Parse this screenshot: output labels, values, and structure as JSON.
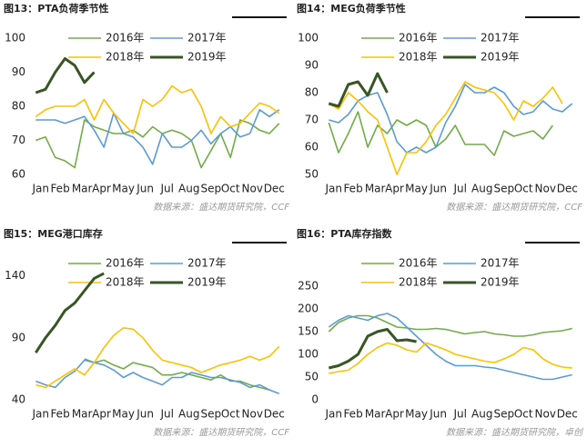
{
  "chart_data": [
    {
      "type": "line",
      "title": "图13：PTA负荷季节性",
      "source": "数据来源：盛达期货研究院，CCF",
      "xlim": [
        0,
        52
      ],
      "xticks": [
        {
          "value": 2,
          "label": "Jan"
        },
        {
          "value": 6,
          "label": "Feb"
        },
        {
          "value": 10.5,
          "label": "Mar"
        },
        {
          "value": 14.5,
          "label": "Apr"
        },
        {
          "value": 19,
          "label": "May"
        },
        {
          "value": 23.5,
          "label": "Jun"
        },
        {
          "value": 28,
          "label": "Jul"
        },
        {
          "value": 32.5,
          "label": "Aug"
        },
        {
          "value": 37,
          "label": "Sep"
        },
        {
          "value": 41,
          "label": "Oct"
        },
        {
          "value": 45.5,
          "label": "Nov"
        },
        {
          "value": 50,
          "label": "Dec"
        }
      ],
      "x": [
        1,
        3,
        5,
        7,
        9,
        11,
        13,
        15,
        17,
        19,
        21,
        23,
        25,
        27,
        29,
        31,
        33,
        35,
        37,
        39,
        41,
        43,
        45,
        47,
        49,
        51
      ],
      "ylim": [
        60,
        100
      ],
      "yticks": [
        60,
        70,
        80,
        90,
        100
      ],
      "series": [
        {
          "name": "2016年",
          "color": "#70ad47",
          "values": [
            70,
            71,
            65,
            64,
            62,
            76,
            74,
            73,
            72,
            72,
            73,
            71,
            74,
            72,
            73,
            72,
            70,
            62,
            67,
            72,
            65,
            76,
            75,
            73,
            72,
            75
          ]
        },
        {
          "name": "2017年",
          "color": "#5b9bd5",
          "values": [
            76,
            76,
            76,
            75,
            76,
            77,
            73,
            68,
            78,
            72,
            71,
            68,
            63,
            72,
            68,
            68,
            70,
            73,
            69,
            72,
            74,
            71,
            72,
            79,
            77,
            79
          ]
        },
        {
          "name": "2018年",
          "color": "#ffc000",
          "values": [
            77,
            79,
            80,
            80,
            80,
            82,
            76,
            82,
            78,
            75,
            72,
            82,
            80,
            82,
            86,
            84,
            85,
            80,
            72,
            77,
            74,
            75,
            78,
            81,
            80,
            78
          ]
        },
        {
          "name": "2019年",
          "color": "#375623",
          "values": [
            84,
            85,
            90,
            94,
            92,
            87,
            90,
            null,
            null,
            null,
            null,
            null,
            null,
            null,
            null,
            null,
            null,
            null,
            null,
            null,
            null,
            null,
            null,
            null,
            null,
            null
          ]
        }
      ]
    },
    {
      "type": "line",
      "title": "图14：MEG负荷季节性",
      "source": "数据来源：盛达期货研究院，CCF",
      "xlim": [
        0,
        52
      ],
      "xticks": [
        {
          "value": 2,
          "label": "Jan"
        },
        {
          "value": 6,
          "label": "Feb"
        },
        {
          "value": 10.5,
          "label": "Mar"
        },
        {
          "value": 14.5,
          "label": "Apr"
        },
        {
          "value": 19,
          "label": "May"
        },
        {
          "value": 23.5,
          "label": "Jun"
        },
        {
          "value": 28,
          "label": "Jul"
        },
        {
          "value": 32.5,
          "label": "Aug"
        },
        {
          "value": 37,
          "label": "Sep"
        },
        {
          "value": 41,
          "label": "Oct"
        },
        {
          "value": 45.5,
          "label": "Nov"
        },
        {
          "value": 50,
          "label": "Dec"
        }
      ],
      "x": [
        1,
        3,
        5,
        7,
        9,
        11,
        13,
        15,
        17,
        19,
        21,
        23,
        25,
        27,
        29,
        31,
        33,
        35,
        37,
        39,
        41,
        43,
        45,
        47,
        49,
        51
      ],
      "ylim": [
        50,
        100
      ],
      "yticks": [
        50,
        60,
        70,
        80,
        90,
        100
      ],
      "series": [
        {
          "name": "2016年",
          "color": "#70ad47",
          "values": [
            69,
            58,
            65,
            73,
            60,
            68,
            65,
            70,
            68,
            70,
            68,
            60,
            63,
            68,
            61,
            61,
            61,
            57,
            66,
            64,
            65,
            66,
            63,
            68,
            null,
            null
          ]
        },
        {
          "name": "2017年",
          "color": "#5b9bd5",
          "values": [
            70,
            69,
            72,
            77,
            79,
            80,
            72,
            62,
            58,
            60,
            58,
            60,
            69,
            75,
            83,
            80,
            80,
            82,
            80,
            75,
            72,
            73,
            77,
            74,
            73,
            76
          ]
        },
        {
          "name": "2018年",
          "color": "#ffc000",
          "values": [
            76,
            74,
            80,
            77,
            73,
            70,
            60,
            50,
            58,
            58,
            62,
            68,
            72,
            78,
            84,
            82,
            81,
            80,
            76,
            70,
            77,
            75,
            78,
            82,
            76,
            null
          ]
        },
        {
          "name": "2019年",
          "color": "#375623",
          "values": [
            76,
            75,
            83,
            84,
            79,
            87,
            80,
            null,
            null,
            null,
            null,
            null,
            null,
            null,
            null,
            null,
            null,
            null,
            null,
            null,
            null,
            null,
            null,
            null,
            null,
            null
          ]
        }
      ]
    },
    {
      "type": "line",
      "title": "图15：MEG港口库存",
      "source": "数据来源：盛达期货研究院，CCF",
      "xlim": [
        0,
        52
      ],
      "xticks": [
        {
          "value": 2,
          "label": "Jan"
        },
        {
          "value": 6,
          "label": "Feb"
        },
        {
          "value": 10.5,
          "label": "Mar"
        },
        {
          "value": 14.5,
          "label": "Apr"
        },
        {
          "value": 19,
          "label": "May"
        },
        {
          "value": 23.5,
          "label": "Jun"
        },
        {
          "value": 28,
          "label": "Jul"
        },
        {
          "value": 32.5,
          "label": "Aug"
        },
        {
          "value": 37,
          "label": "Sep"
        },
        {
          "value": 41,
          "label": "Oct"
        },
        {
          "value": 45.5,
          "label": "Nov"
        },
        {
          "value": 50,
          "label": "Dec"
        }
      ],
      "x": [
        1,
        3,
        5,
        7,
        9,
        11,
        13,
        15,
        17,
        19,
        21,
        23,
        25,
        27,
        29,
        31,
        33,
        35,
        37,
        39,
        41,
        43,
        45,
        47,
        49,
        51
      ],
      "ylim": [
        40,
        150
      ],
      "yticks": [
        40,
        90,
        140
      ],
      "series": [
        {
          "name": "2016年",
          "color": "#70ad47",
          "values": [
            null,
            null,
            null,
            null,
            null,
            73,
            70,
            72,
            68,
            65,
            70,
            68,
            66,
            60,
            60,
            62,
            60,
            58,
            56,
            60,
            55,
            55,
            52,
            50,
            48,
            null
          ]
        },
        {
          "name": "2017年",
          "color": "#5b9bd5",
          "values": [
            55,
            52,
            50,
            58,
            63,
            72,
            70,
            68,
            64,
            58,
            62,
            58,
            55,
            52,
            58,
            58,
            62,
            60,
            58,
            58,
            56,
            54,
            50,
            52,
            48,
            45
          ]
        },
        {
          "name": "2018年",
          "color": "#ffc000",
          "values": [
            52,
            50,
            55,
            60,
            65,
            60,
            70,
            82,
            92,
            98,
            97,
            90,
            80,
            72,
            70,
            68,
            66,
            62,
            65,
            68,
            70,
            72,
            75,
            72,
            75,
            83
          ]
        },
        {
          "name": "2019年",
          "color": "#375623",
          "values": [
            78,
            90,
            100,
            112,
            118,
            128,
            138,
            142,
            null,
            null,
            null,
            null,
            null,
            null,
            null,
            null,
            null,
            null,
            null,
            null,
            null,
            null,
            null,
            null,
            null,
            null
          ]
        }
      ]
    },
    {
      "type": "line",
      "title": "图16：PTA库存指数",
      "source": "数据来源：盛达期货研究院，卓创",
      "xlim": [
        0,
        52
      ],
      "xticks": [
        {
          "value": 2,
          "label": "Jan"
        },
        {
          "value": 6,
          "label": "Feb"
        },
        {
          "value": 10.5,
          "label": "Mar"
        },
        {
          "value": 14.5,
          "label": "Apr"
        },
        {
          "value": 19,
          "label": "May"
        },
        {
          "value": 23.5,
          "label": "Jun"
        },
        {
          "value": 28,
          "label": "Jul"
        },
        {
          "value": 32.5,
          "label": "Aug"
        },
        {
          "value": 37,
          "label": "Sep"
        },
        {
          "value": 41,
          "label": "Oct"
        },
        {
          "value": 45.5,
          "label": "Nov"
        },
        {
          "value": 50,
          "label": "Dec"
        }
      ],
      "x": [
        1,
        3,
        5,
        7,
        9,
        11,
        13,
        15,
        17,
        19,
        21,
        23,
        25,
        27,
        29,
        31,
        33,
        35,
        37,
        39,
        41,
        43,
        45,
        47,
        49,
        51
      ],
      "ylim": [
        0,
        300
      ],
      "yticks": [
        0,
        50,
        100,
        150,
        200,
        250
      ],
      "series": [
        {
          "name": "2016年",
          "color": "#70ad47",
          "values": [
            150,
            170,
            180,
            185,
            185,
            180,
            170,
            160,
            158,
            155,
            155,
            157,
            155,
            150,
            145,
            148,
            150,
            145,
            143,
            140,
            140,
            143,
            148,
            150,
            152,
            157
          ]
        },
        {
          "name": "2017年",
          "color": "#5b9bd5",
          "values": [
            160,
            175,
            185,
            180,
            175,
            185,
            190,
            180,
            160,
            140,
            120,
            100,
            85,
            75,
            75,
            75,
            72,
            70,
            65,
            60,
            55,
            50,
            45,
            45,
            50,
            55
          ]
        },
        {
          "name": "2018年",
          "color": "#ffc000",
          "values": [
            58,
            62,
            65,
            80,
            100,
            115,
            125,
            120,
            110,
            105,
            125,
            118,
            110,
            100,
            95,
            90,
            85,
            82,
            90,
            100,
            115,
            110,
            90,
            78,
            72,
            70
          ]
        },
        {
          "name": "2019年",
          "color": "#375623",
          "values": [
            70,
            75,
            85,
            100,
            140,
            150,
            155,
            130,
            132,
            128,
            null,
            null,
            null,
            null,
            null,
            null,
            null,
            null,
            null,
            null,
            null,
            null,
            null,
            null,
            null,
            null
          ]
        }
      ]
    }
  ]
}
